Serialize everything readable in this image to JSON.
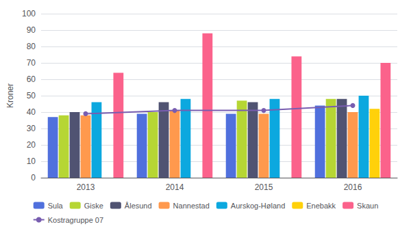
{
  "chart_data": {
    "type": "bar",
    "categories": [
      "2013",
      "2014",
      "2015",
      "2016"
    ],
    "ylabel": "Kroner",
    "ylim": [
      0,
      100
    ],
    "yticks": [
      0,
      10,
      20,
      30,
      40,
      50,
      60,
      70,
      80,
      90,
      100
    ],
    "grid": true,
    "legend": "bottom",
    "series": [
      {
        "name": "Sula",
        "values": [
          37,
          39,
          39,
          44
        ]
      },
      {
        "name": "Giske",
        "values": [
          38,
          40,
          47,
          48
        ]
      },
      {
        "name": "Ålesund",
        "values": [
          40,
          46,
          46,
          48
        ]
      },
      {
        "name": "Nannestad",
        "values": [
          38,
          41,
          39,
          40
        ]
      },
      {
        "name": "Aurskog-Høland",
        "values": [
          46,
          48,
          48,
          50
        ]
      },
      {
        "name": "Enebakk",
        "values": [
          0,
          0,
          0,
          42
        ]
      },
      {
        "name": "Skaun",
        "values": [
          64,
          88,
          74,
          70
        ]
      },
      {
        "name": "Kostragruppe 07",
        "type": "line",
        "marker": "circle",
        "values": [
          39,
          41,
          41,
          44
        ]
      }
    ]
  }
}
